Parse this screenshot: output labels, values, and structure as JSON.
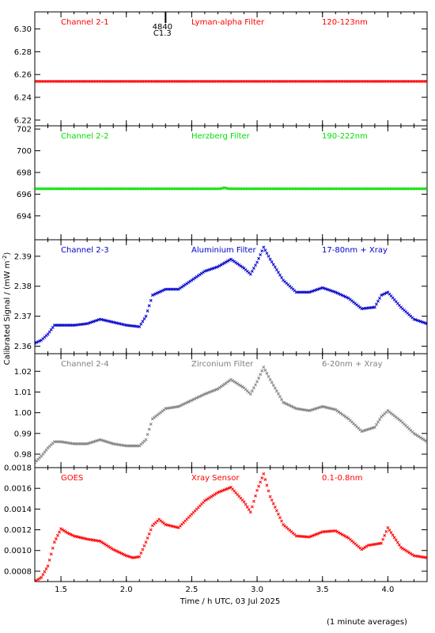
{
  "figure": {
    "xlabel": "Time / h UTC, 03 Jul 2025",
    "ylabel": "Calibrated Signal / (mW m",
    "ylabel_sup": "-2",
    "ylabel_close": ")",
    "footnote": "(1 minute averages)",
    "xlim": [
      1.3,
      4.3
    ],
    "xticks": [
      "1.5",
      "2.0",
      "2.5",
      "3.0",
      "3.5",
      "4.0"
    ],
    "xtick_values": [
      1.5,
      2.0,
      2.5,
      3.0,
      3.5,
      4.0
    ],
    "marker_line": {
      "x": 2.3,
      "labels": [
        "4840",
        "C1.3"
      ]
    }
  },
  "chart_data": [
    {
      "type": "scatter",
      "channel": "Channel 2-1",
      "filter": "Lyman-alpha Filter",
      "band": "120-123nm",
      "color": "#ff0000",
      "ylim": [
        6.215,
        6.315
      ],
      "yticks": [
        "6.22",
        "6.24",
        "6.26",
        "6.28",
        "6.30"
      ],
      "ytick_values": [
        6.22,
        6.24,
        6.26,
        6.28,
        6.3
      ],
      "x": [
        1.3,
        1.5,
        2.0,
        2.5,
        2.8,
        3.0,
        3.5,
        4.0,
        4.3
      ],
      "y": [
        6.254,
        6.254,
        6.254,
        6.254,
        6.254,
        6.254,
        6.254,
        6.254,
        6.254
      ]
    },
    {
      "type": "scatter",
      "channel": "Channel 2-2",
      "filter": "Herzberg Filter",
      "band": "190-222nm",
      "color": "#00e000",
      "ylim": [
        691.8,
        702.3
      ],
      "yticks": [
        "694",
        "696",
        "698",
        "700",
        "702"
      ],
      "ytick_values": [
        694,
        696,
        698,
        700,
        702
      ],
      "x": [
        1.3,
        1.5,
        2.0,
        2.5,
        2.72,
        2.75,
        2.78,
        3.0,
        3.5,
        4.0,
        4.3
      ],
      "y": [
        696.5,
        696.5,
        696.5,
        696.5,
        696.5,
        696.6,
        696.5,
        696.5,
        696.5,
        696.5,
        696.5
      ]
    },
    {
      "type": "scatter",
      "channel": "Channel 2-3",
      "filter": "Aluminium Filter",
      "band": "17-80nm + Xray",
      "color": "#0000cc",
      "ylim": [
        2.3575,
        2.3955
      ],
      "yticks": [
        "2.36",
        "2.37",
        "2.38",
        "2.39"
      ],
      "ytick_values": [
        2.36,
        2.37,
        2.38,
        2.39
      ],
      "x": [
        1.3,
        1.35,
        1.4,
        1.45,
        1.5,
        1.6,
        1.7,
        1.8,
        1.9,
        2.0,
        2.1,
        2.15,
        2.2,
        2.3,
        2.4,
        2.5,
        2.6,
        2.7,
        2.8,
        2.9,
        2.95,
        3.0,
        3.05,
        3.1,
        3.2,
        3.3,
        3.4,
        3.5,
        3.6,
        3.7,
        3.8,
        3.9,
        3.95,
        4.0,
        4.1,
        4.2,
        4.3
      ],
      "y": [
        2.361,
        2.362,
        2.364,
        2.367,
        2.367,
        2.367,
        2.3675,
        2.369,
        2.368,
        2.367,
        2.3665,
        2.37,
        2.377,
        2.379,
        2.379,
        2.382,
        2.385,
        2.3865,
        2.389,
        2.386,
        2.384,
        2.388,
        2.393,
        2.389,
        2.382,
        2.378,
        2.378,
        2.3795,
        2.378,
        2.376,
        2.3725,
        2.373,
        2.377,
        2.378,
        2.373,
        2.369,
        2.3675
      ]
    },
    {
      "type": "scatter",
      "channel": "Channel 2-4",
      "filter": "Zirconium Filter",
      "band": "6-20nm + Xray",
      "color": "#808080",
      "ylim": [
        0.9735,
        1.0285
      ],
      "yticks": [
        "0.98",
        "0.99",
        "1.00",
        "1.01",
        "1.02"
      ],
      "ytick_values": [
        0.98,
        0.99,
        1.0,
        1.01,
        1.02
      ],
      "x": [
        1.3,
        1.35,
        1.4,
        1.45,
        1.5,
        1.6,
        1.7,
        1.8,
        1.9,
        2.0,
        2.1,
        2.15,
        2.2,
        2.3,
        2.4,
        2.5,
        2.6,
        2.7,
        2.8,
        2.9,
        2.95,
        3.0,
        3.05,
        3.1,
        3.2,
        3.3,
        3.4,
        3.5,
        3.6,
        3.7,
        3.8,
        3.9,
        3.95,
        4.0,
        4.1,
        4.2,
        4.3
      ],
      "y": [
        0.976,
        0.979,
        0.983,
        0.986,
        0.986,
        0.985,
        0.985,
        0.987,
        0.985,
        0.984,
        0.984,
        0.987,
        0.997,
        1.002,
        1.003,
        1.006,
        1.009,
        1.0115,
        1.016,
        1.012,
        1.009,
        1.015,
        1.022,
        1.016,
        1.005,
        1.002,
        1.001,
        1.003,
        1.0015,
        0.997,
        0.991,
        0.993,
        0.998,
        1.001,
        0.996,
        0.99,
        0.986
      ]
    },
    {
      "type": "scatter",
      "channel": "GOES",
      "filter": "Xray Sensor",
      "band": "0.1-0.8nm",
      "color": "#ff0000",
      "ylim": [
        0.0007,
        0.0018
      ],
      "yticks": [
        "0.0008",
        "0.0010",
        "0.0012",
        "0.0014",
        "0.0016",
        "0.0018"
      ],
      "ytick_values": [
        0.0008,
        0.001,
        0.0012,
        0.0014,
        0.0016,
        0.0018
      ],
      "x": [
        1.3,
        1.35,
        1.4,
        1.45,
        1.5,
        1.55,
        1.6,
        1.7,
        1.8,
        1.9,
        2.0,
        2.05,
        2.1,
        2.15,
        2.2,
        2.25,
        2.3,
        2.4,
        2.5,
        2.6,
        2.7,
        2.8,
        2.9,
        2.95,
        3.0,
        3.05,
        3.1,
        3.2,
        3.3,
        3.4,
        3.5,
        3.6,
        3.7,
        3.8,
        3.85,
        3.9,
        3.95,
        4.0,
        4.1,
        4.2,
        4.3
      ],
      "y": [
        0.0007,
        0.00074,
        0.00085,
        0.00108,
        0.00121,
        0.00117,
        0.00114,
        0.00111,
        0.00109,
        0.00101,
        0.00095,
        0.00093,
        0.00094,
        0.00108,
        0.00124,
        0.0013,
        0.00125,
        0.00122,
        0.00135,
        0.00148,
        0.00156,
        0.00161,
        0.00147,
        0.00137,
        0.00158,
        0.00174,
        0.00152,
        0.00125,
        0.00114,
        0.00113,
        0.00118,
        0.00119,
        0.00112,
        0.00101,
        0.00105,
        0.00106,
        0.00107,
        0.00122,
        0.00103,
        0.00095,
        0.00093
      ]
    }
  ]
}
